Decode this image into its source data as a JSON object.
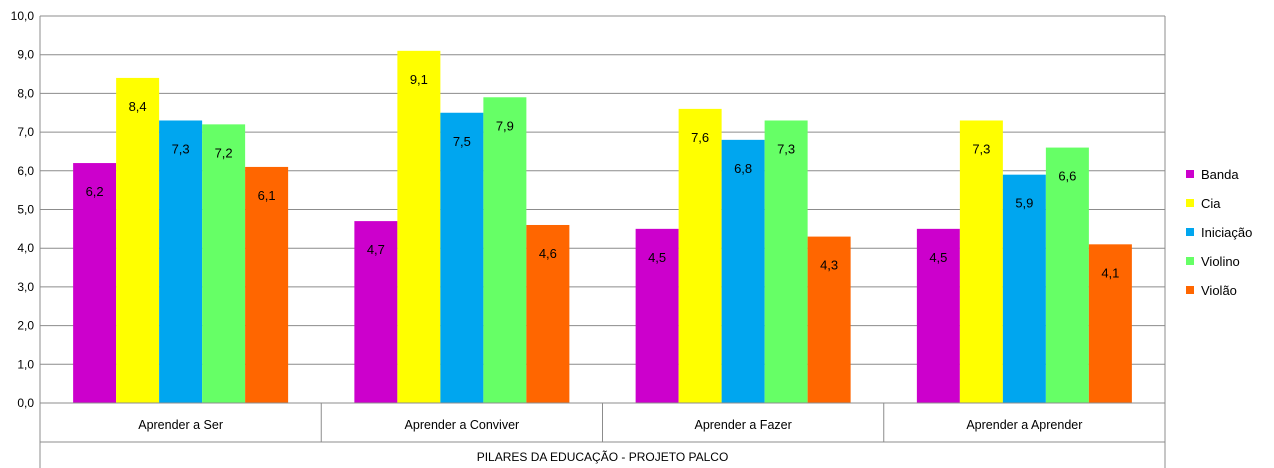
{
  "chart_data": {
    "type": "bar",
    "title": "",
    "xlabel": "PILARES DA EDUCAÇÃO - PROJETO PALCO",
    "ylabel": "",
    "ylim": [
      0,
      10
    ],
    "yticks": [
      "0,0",
      "1,0",
      "2,0",
      "3,0",
      "4,0",
      "5,0",
      "6,0",
      "7,0",
      "8,0",
      "9,0",
      "10,0"
    ],
    "grid": true,
    "legend_position": "right",
    "categories": [
      "Aprender a Ser",
      "Aprender a Conviver",
      "Aprender a Fazer",
      "Aprender a Aprender"
    ],
    "series": [
      {
        "name": "Banda",
        "color": "#cc00cc",
        "values": [
          6.2,
          4.7,
          4.5,
          4.5
        ],
        "labels": [
          "6,2",
          "4,7",
          "4,5",
          "4,5"
        ]
      },
      {
        "name": "Cia",
        "color": "#ffff00",
        "values": [
          8.4,
          9.1,
          7.6,
          7.3
        ],
        "labels": [
          "8,4",
          "9,1",
          "7,6",
          "7,3"
        ]
      },
      {
        "name": "Iniciação",
        "color": "#00a6ef",
        "values": [
          7.3,
          7.5,
          6.8,
          5.9
        ],
        "labels": [
          "7,3",
          "7,5",
          "6,8",
          "5,9"
        ]
      },
      {
        "name": "Violino",
        "color": "#66ff66",
        "values": [
          7.2,
          7.9,
          7.3,
          6.6
        ],
        "labels": [
          "7,2",
          "7,9",
          "7,3",
          "6,6"
        ]
      },
      {
        "name": "Violão",
        "color": "#ff6600",
        "values": [
          6.1,
          4.6,
          4.3,
          4.1
        ],
        "labels": [
          "6,1",
          "4,6",
          "4,3",
          "4,1"
        ]
      }
    ]
  }
}
